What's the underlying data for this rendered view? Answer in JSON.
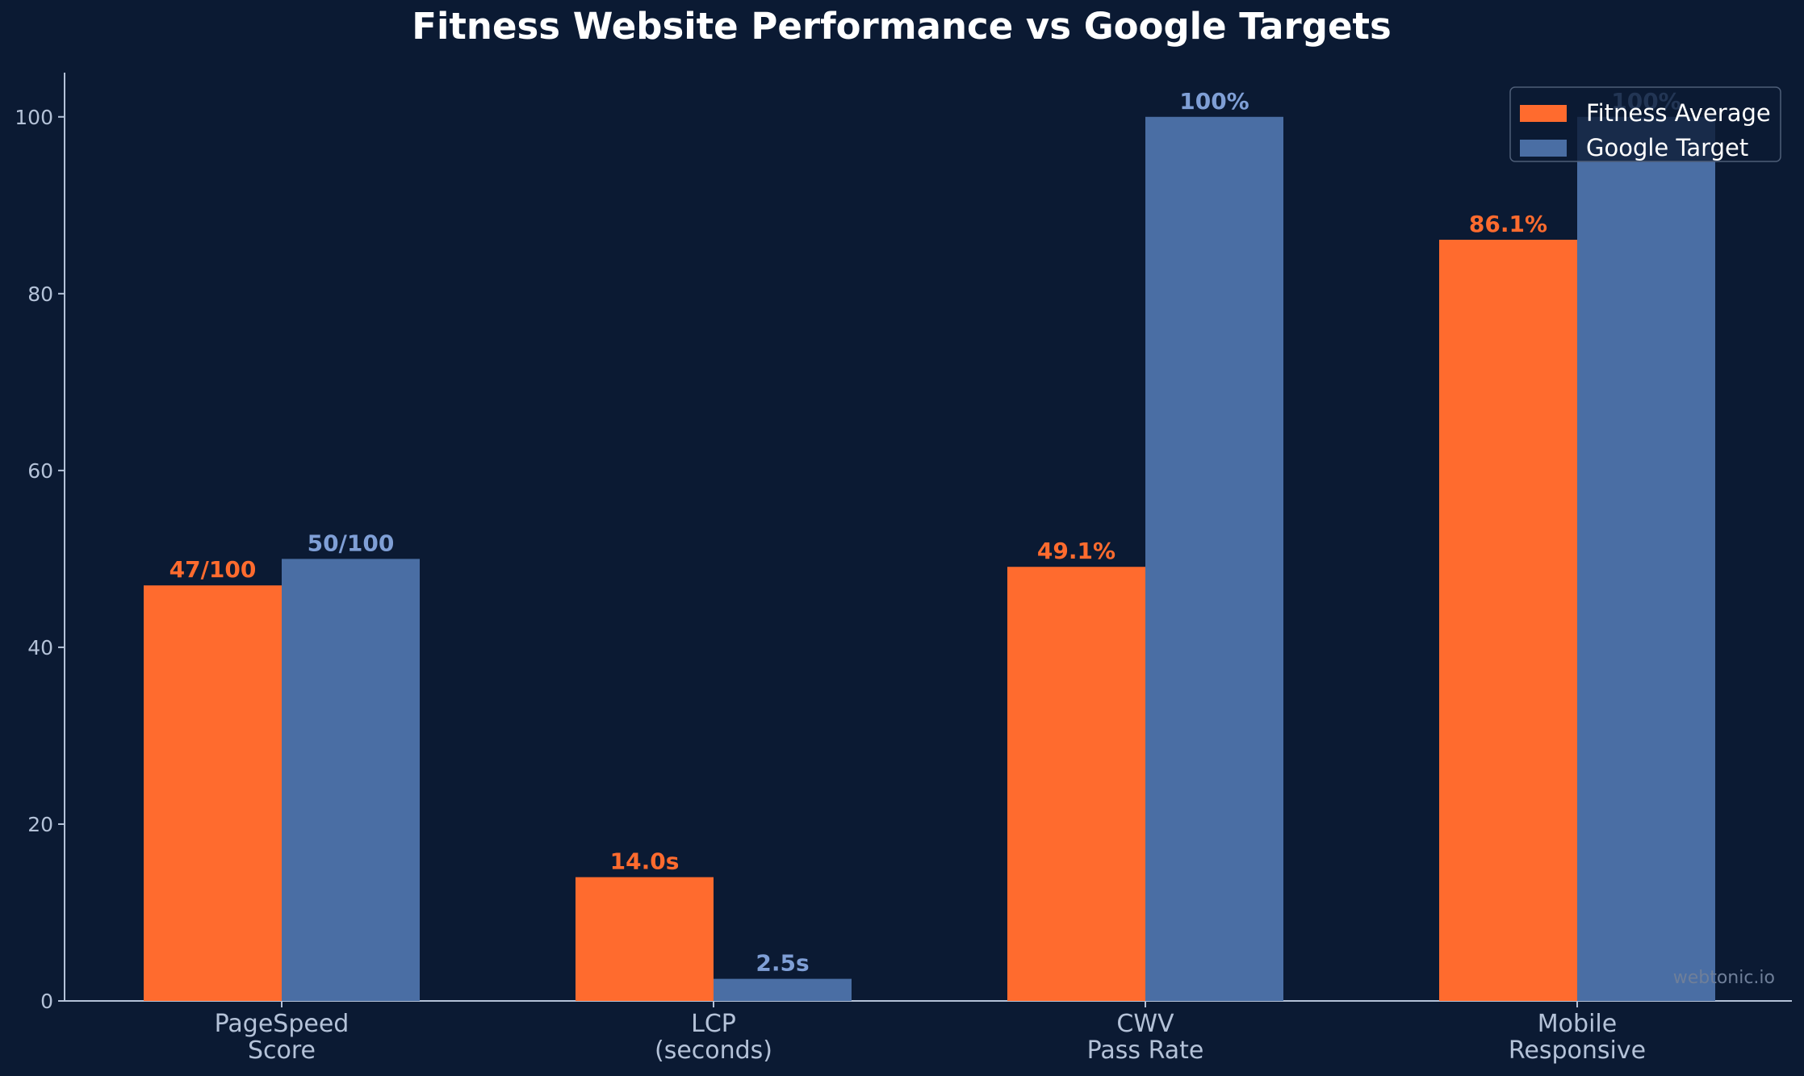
{
  "colors": {
    "background": "#0b1a33",
    "axis": "#b4c2d8",
    "fitness": "#ff6b2e",
    "google": "#4a6ea4",
    "google_label": "#7f9fd6"
  },
  "chart_data": {
    "type": "bar",
    "title": "Fitness Website Performance vs Google Targets",
    "xlabel": "",
    "ylabel": "",
    "categories": [
      [
        "PageSpeed",
        "Score"
      ],
      [
        "LCP",
        "(seconds)"
      ],
      [
        "CWV",
        "Pass Rate"
      ],
      [
        "Mobile",
        "Responsive"
      ]
    ],
    "series": [
      {
        "name": "Fitness Average",
        "values": [
          47,
          14.0,
          49.1,
          86.1
        ],
        "labels": [
          "47/100",
          "14.0s",
          "49.1%",
          "86.1%"
        ]
      },
      {
        "name": "Google Target",
        "values": [
          50,
          2.5,
          100,
          100
        ],
        "labels": [
          "50/100",
          "2.5s",
          "100%",
          "100%"
        ]
      }
    ],
    "ylim": [
      0,
      105
    ],
    "yticks": [
      0,
      20,
      40,
      60,
      80,
      100
    ],
    "legend_position": "top-right",
    "grid": false
  },
  "watermark": "webtonic.io"
}
